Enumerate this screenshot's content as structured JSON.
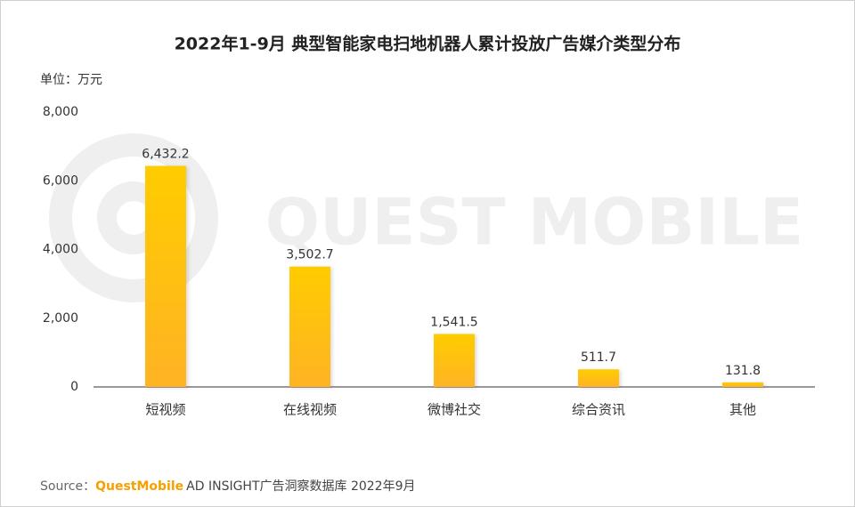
{
  "chart_data": {
    "type": "bar",
    "title": "2022年1-9月 典型智能家电扫地机器人累计投放广告媒介类型分布",
    "unit_label": "单位：万元",
    "watermark": "QUEST MOBILE",
    "categories": [
      "短视频",
      "在线视频",
      "微博社交",
      "综合资讯",
      "其他"
    ],
    "values": [
      6432.2,
      3502.7,
      1541.5,
      511.7,
      131.8
    ],
    "value_labels": [
      "6,432.2",
      "3,502.7",
      "1,541.5",
      "511.7",
      "131.8"
    ],
    "color": "#ffc61a",
    "ylim": [
      0,
      8000
    ],
    "yticks": [
      0,
      {
        "value": 2000,
        "label": "2,000"
      },
      {
        "value": 4000,
        "label": "4,000"
      },
      {
        "value": 6000,
        "label": "6,000"
      },
      {
        "value": 8000,
        "label": "8,000"
      }
    ],
    "grid": false,
    "source": {
      "label": "Source：",
      "brand": "QuestMobile",
      "text": "AD INSIGHT广告洞察数据库 2022年9月"
    }
  }
}
